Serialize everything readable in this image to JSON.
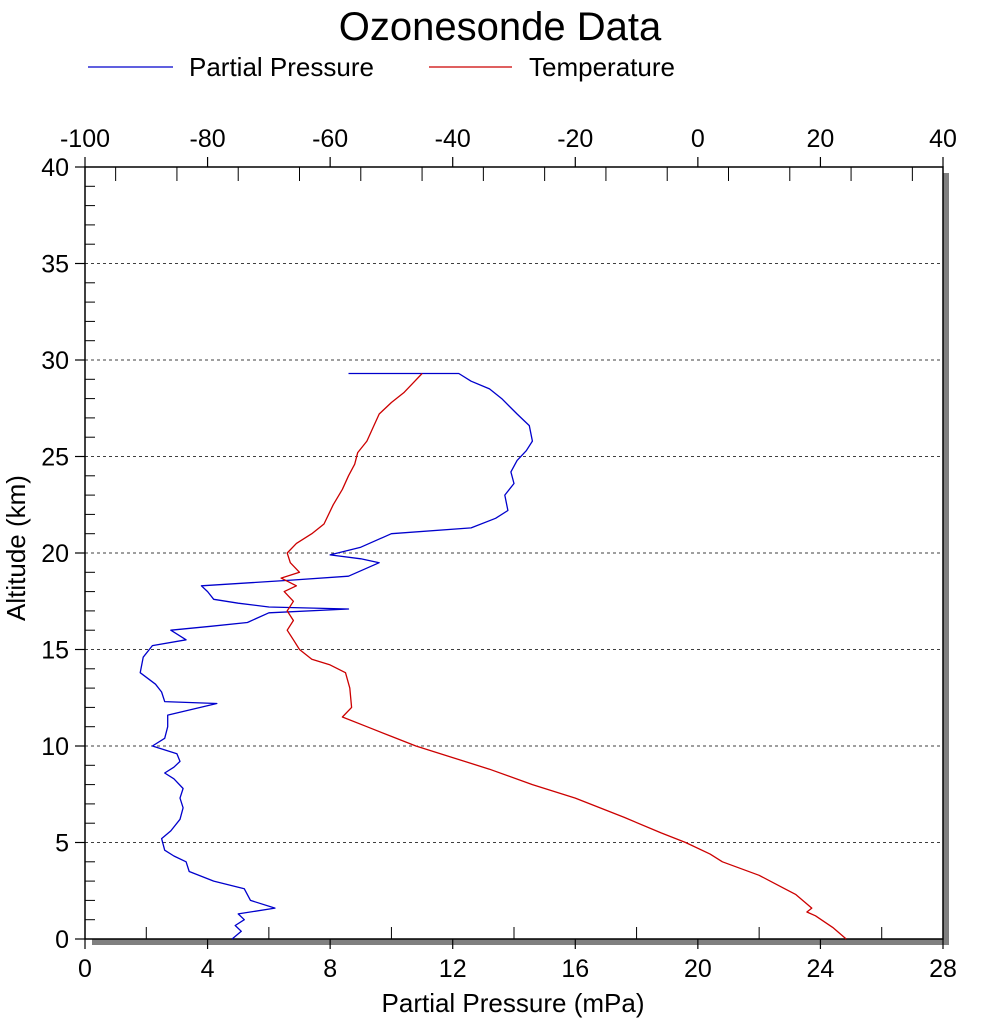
{
  "chart_data": {
    "type": "line",
    "title": "Ozonesonde Data",
    "xlabel": "Partial Pressure (mPa)",
    "ylabel": "Altitude (km)",
    "x_ticks": [
      "0",
      "4",
      "8",
      "12",
      "16",
      "20",
      "24",
      "28"
    ],
    "x2_ticks": [
      "-100",
      "-80",
      "-60",
      "-40",
      "-20",
      "0",
      "20",
      "40"
    ],
    "y_ticks": [
      "0",
      "5",
      "10",
      "15",
      "20",
      "25",
      "30",
      "35",
      "40"
    ],
    "xlim": [
      0,
      28
    ],
    "x2lim": [
      -100,
      40
    ],
    "ylim": [
      0,
      40
    ],
    "grid": "horizontal dashed",
    "legend_position": "top",
    "series": [
      {
        "name": "Partial Pressure",
        "axis": "bottom",
        "color": "#0000cc",
        "points": [
          [
            4.8,
            0.0
          ],
          [
            5.1,
            0.4
          ],
          [
            4.9,
            0.7
          ],
          [
            5.2,
            1.0
          ],
          [
            5.0,
            1.3
          ],
          [
            6.2,
            1.6
          ],
          [
            5.4,
            2.0
          ],
          [
            5.2,
            2.6
          ],
          [
            4.2,
            3.0
          ],
          [
            3.4,
            3.5
          ],
          [
            3.3,
            4.0
          ],
          [
            2.9,
            4.3
          ],
          [
            2.6,
            4.6
          ],
          [
            2.5,
            5.2
          ],
          [
            2.8,
            5.6
          ],
          [
            3.1,
            6.2
          ],
          [
            3.2,
            6.8
          ],
          [
            3.1,
            7.3
          ],
          [
            3.2,
            7.8
          ],
          [
            2.9,
            8.3
          ],
          [
            2.6,
            8.6
          ],
          [
            2.9,
            8.9
          ],
          [
            3.1,
            9.2
          ],
          [
            3.0,
            9.6
          ],
          [
            2.2,
            10.0
          ],
          [
            2.6,
            10.4
          ],
          [
            2.7,
            11.0
          ],
          [
            2.7,
            11.6
          ],
          [
            4.3,
            12.2
          ],
          [
            2.6,
            12.3
          ],
          [
            2.5,
            12.8
          ],
          [
            2.3,
            13.2
          ],
          [
            1.8,
            13.8
          ],
          [
            1.9,
            14.6
          ],
          [
            2.2,
            15.2
          ],
          [
            3.3,
            15.5
          ],
          [
            2.8,
            16.0
          ],
          [
            4.1,
            16.2
          ],
          [
            5.3,
            16.4
          ],
          [
            6.0,
            16.9
          ],
          [
            8.6,
            17.1
          ],
          [
            6.0,
            17.2
          ],
          [
            5.0,
            17.4
          ],
          [
            4.2,
            17.6
          ],
          [
            4.0,
            18.0
          ],
          [
            3.8,
            18.3
          ],
          [
            6.8,
            18.6
          ],
          [
            8.6,
            18.8
          ],
          [
            9.6,
            19.5
          ],
          [
            9.0,
            19.7
          ],
          [
            8.0,
            19.9
          ],
          [
            9.0,
            20.3
          ],
          [
            10.0,
            21.0
          ],
          [
            12.6,
            21.3
          ],
          [
            13.4,
            21.8
          ],
          [
            13.8,
            22.2
          ],
          [
            13.7,
            23.0
          ],
          [
            14.0,
            23.6
          ],
          [
            13.9,
            24.2
          ],
          [
            14.1,
            24.8
          ],
          [
            14.4,
            25.3
          ],
          [
            14.6,
            25.8
          ],
          [
            14.5,
            26.6
          ],
          [
            14.1,
            27.2
          ],
          [
            13.6,
            28.0
          ],
          [
            13.2,
            28.5
          ],
          [
            12.6,
            28.9
          ],
          [
            12.2,
            29.3
          ],
          [
            8.6,
            29.3
          ]
        ]
      },
      {
        "name": "Temperature",
        "axis": "top",
        "color": "#cc0000",
        "points": [
          [
            24.2,
            0.0
          ],
          [
            22.0,
            0.6
          ],
          [
            19.2,
            1.2
          ],
          [
            17.8,
            1.4
          ],
          [
            18.6,
            1.6
          ],
          [
            16.0,
            2.3
          ],
          [
            10.0,
            3.3
          ],
          [
            4.0,
            4.0
          ],
          [
            2.0,
            4.4
          ],
          [
            -2.0,
            5.0
          ],
          [
            -6.0,
            5.5
          ],
          [
            -12.0,
            6.3
          ],
          [
            -20.0,
            7.3
          ],
          [
            -27.0,
            8.0
          ],
          [
            -34.0,
            8.8
          ],
          [
            -40.0,
            9.4
          ],
          [
            -46.0,
            10.0
          ],
          [
            -50.0,
            10.5
          ],
          [
            -54.0,
            11.0
          ],
          [
            -58.0,
            11.5
          ],
          [
            -56.5,
            12.0
          ],
          [
            -56.8,
            13.0
          ],
          [
            -57.5,
            13.8
          ],
          [
            -60.0,
            14.2
          ],
          [
            -63.0,
            14.5
          ],
          [
            -65.0,
            15.0
          ],
          [
            -66.0,
            15.5
          ],
          [
            -67.0,
            16.0
          ],
          [
            -66.0,
            16.5
          ],
          [
            -67.0,
            17.0
          ],
          [
            -66.0,
            17.5
          ],
          [
            -67.5,
            18.0
          ],
          [
            -65.5,
            18.3
          ],
          [
            -68.0,
            18.7
          ],
          [
            -65.0,
            19.0
          ],
          [
            -66.5,
            19.5
          ],
          [
            -67.0,
            20.0
          ],
          [
            -65.5,
            20.5
          ],
          [
            -63.0,
            21.0
          ],
          [
            -61.0,
            21.5
          ],
          [
            -59.5,
            22.5
          ],
          [
            -58.0,
            23.3
          ],
          [
            -57.0,
            24.0
          ],
          [
            -56.0,
            24.6
          ],
          [
            -55.5,
            25.2
          ],
          [
            -54.0,
            25.8
          ],
          [
            -53.0,
            26.5
          ],
          [
            -52.0,
            27.2
          ],
          [
            -50.0,
            27.8
          ],
          [
            -48.0,
            28.3
          ],
          [
            -46.5,
            28.8
          ],
          [
            -45.0,
            29.3
          ]
        ]
      }
    ]
  }
}
